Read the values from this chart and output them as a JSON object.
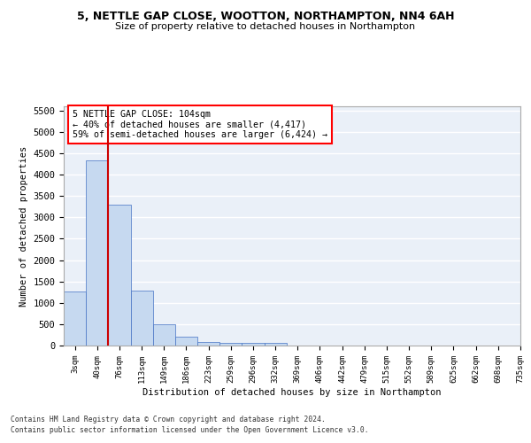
{
  "title_line1": "5, NETTLE GAP CLOSE, WOOTTON, NORTHAMPTON, NN4 6AH",
  "title_line2": "Size of property relative to detached houses in Northampton",
  "xlabel": "Distribution of detached houses by size in Northampton",
  "ylabel": "Number of detached properties",
  "bar_values": [
    1260,
    4330,
    3300,
    1280,
    490,
    215,
    90,
    70,
    55,
    55,
    0,
    0,
    0,
    0,
    0,
    0,
    0,
    0,
    0,
    0
  ],
  "bar_labels": [
    "3sqm",
    "40sqm",
    "76sqm",
    "113sqm",
    "149sqm",
    "186sqm",
    "223sqm",
    "259sqm",
    "296sqm",
    "332sqm",
    "369sqm",
    "406sqm",
    "442sqm",
    "479sqm",
    "515sqm",
    "552sqm",
    "589sqm",
    "625sqm",
    "662sqm",
    "698sqm",
    "735sqm"
  ],
  "bar_color": "#c6d9f0",
  "bar_edge_color": "#4472c4",
  "vline_x": 2.0,
  "vline_color": "#cc0000",
  "ylim": [
    0,
    5600
  ],
  "yticks": [
    0,
    500,
    1000,
    1500,
    2000,
    2500,
    3000,
    3500,
    4000,
    4500,
    5000,
    5500
  ],
  "annotation_text": "5 NETTLE GAP CLOSE: 104sqm\n← 40% of detached houses are smaller (4,417)\n59% of semi-detached houses are larger (6,424) →",
  "bg_color": "#eaf0f8",
  "grid_color": "#ffffff",
  "footer_line1": "Contains HM Land Registry data © Crown copyright and database right 2024.",
  "footer_line2": "Contains public sector information licensed under the Open Government Licence v3.0."
}
